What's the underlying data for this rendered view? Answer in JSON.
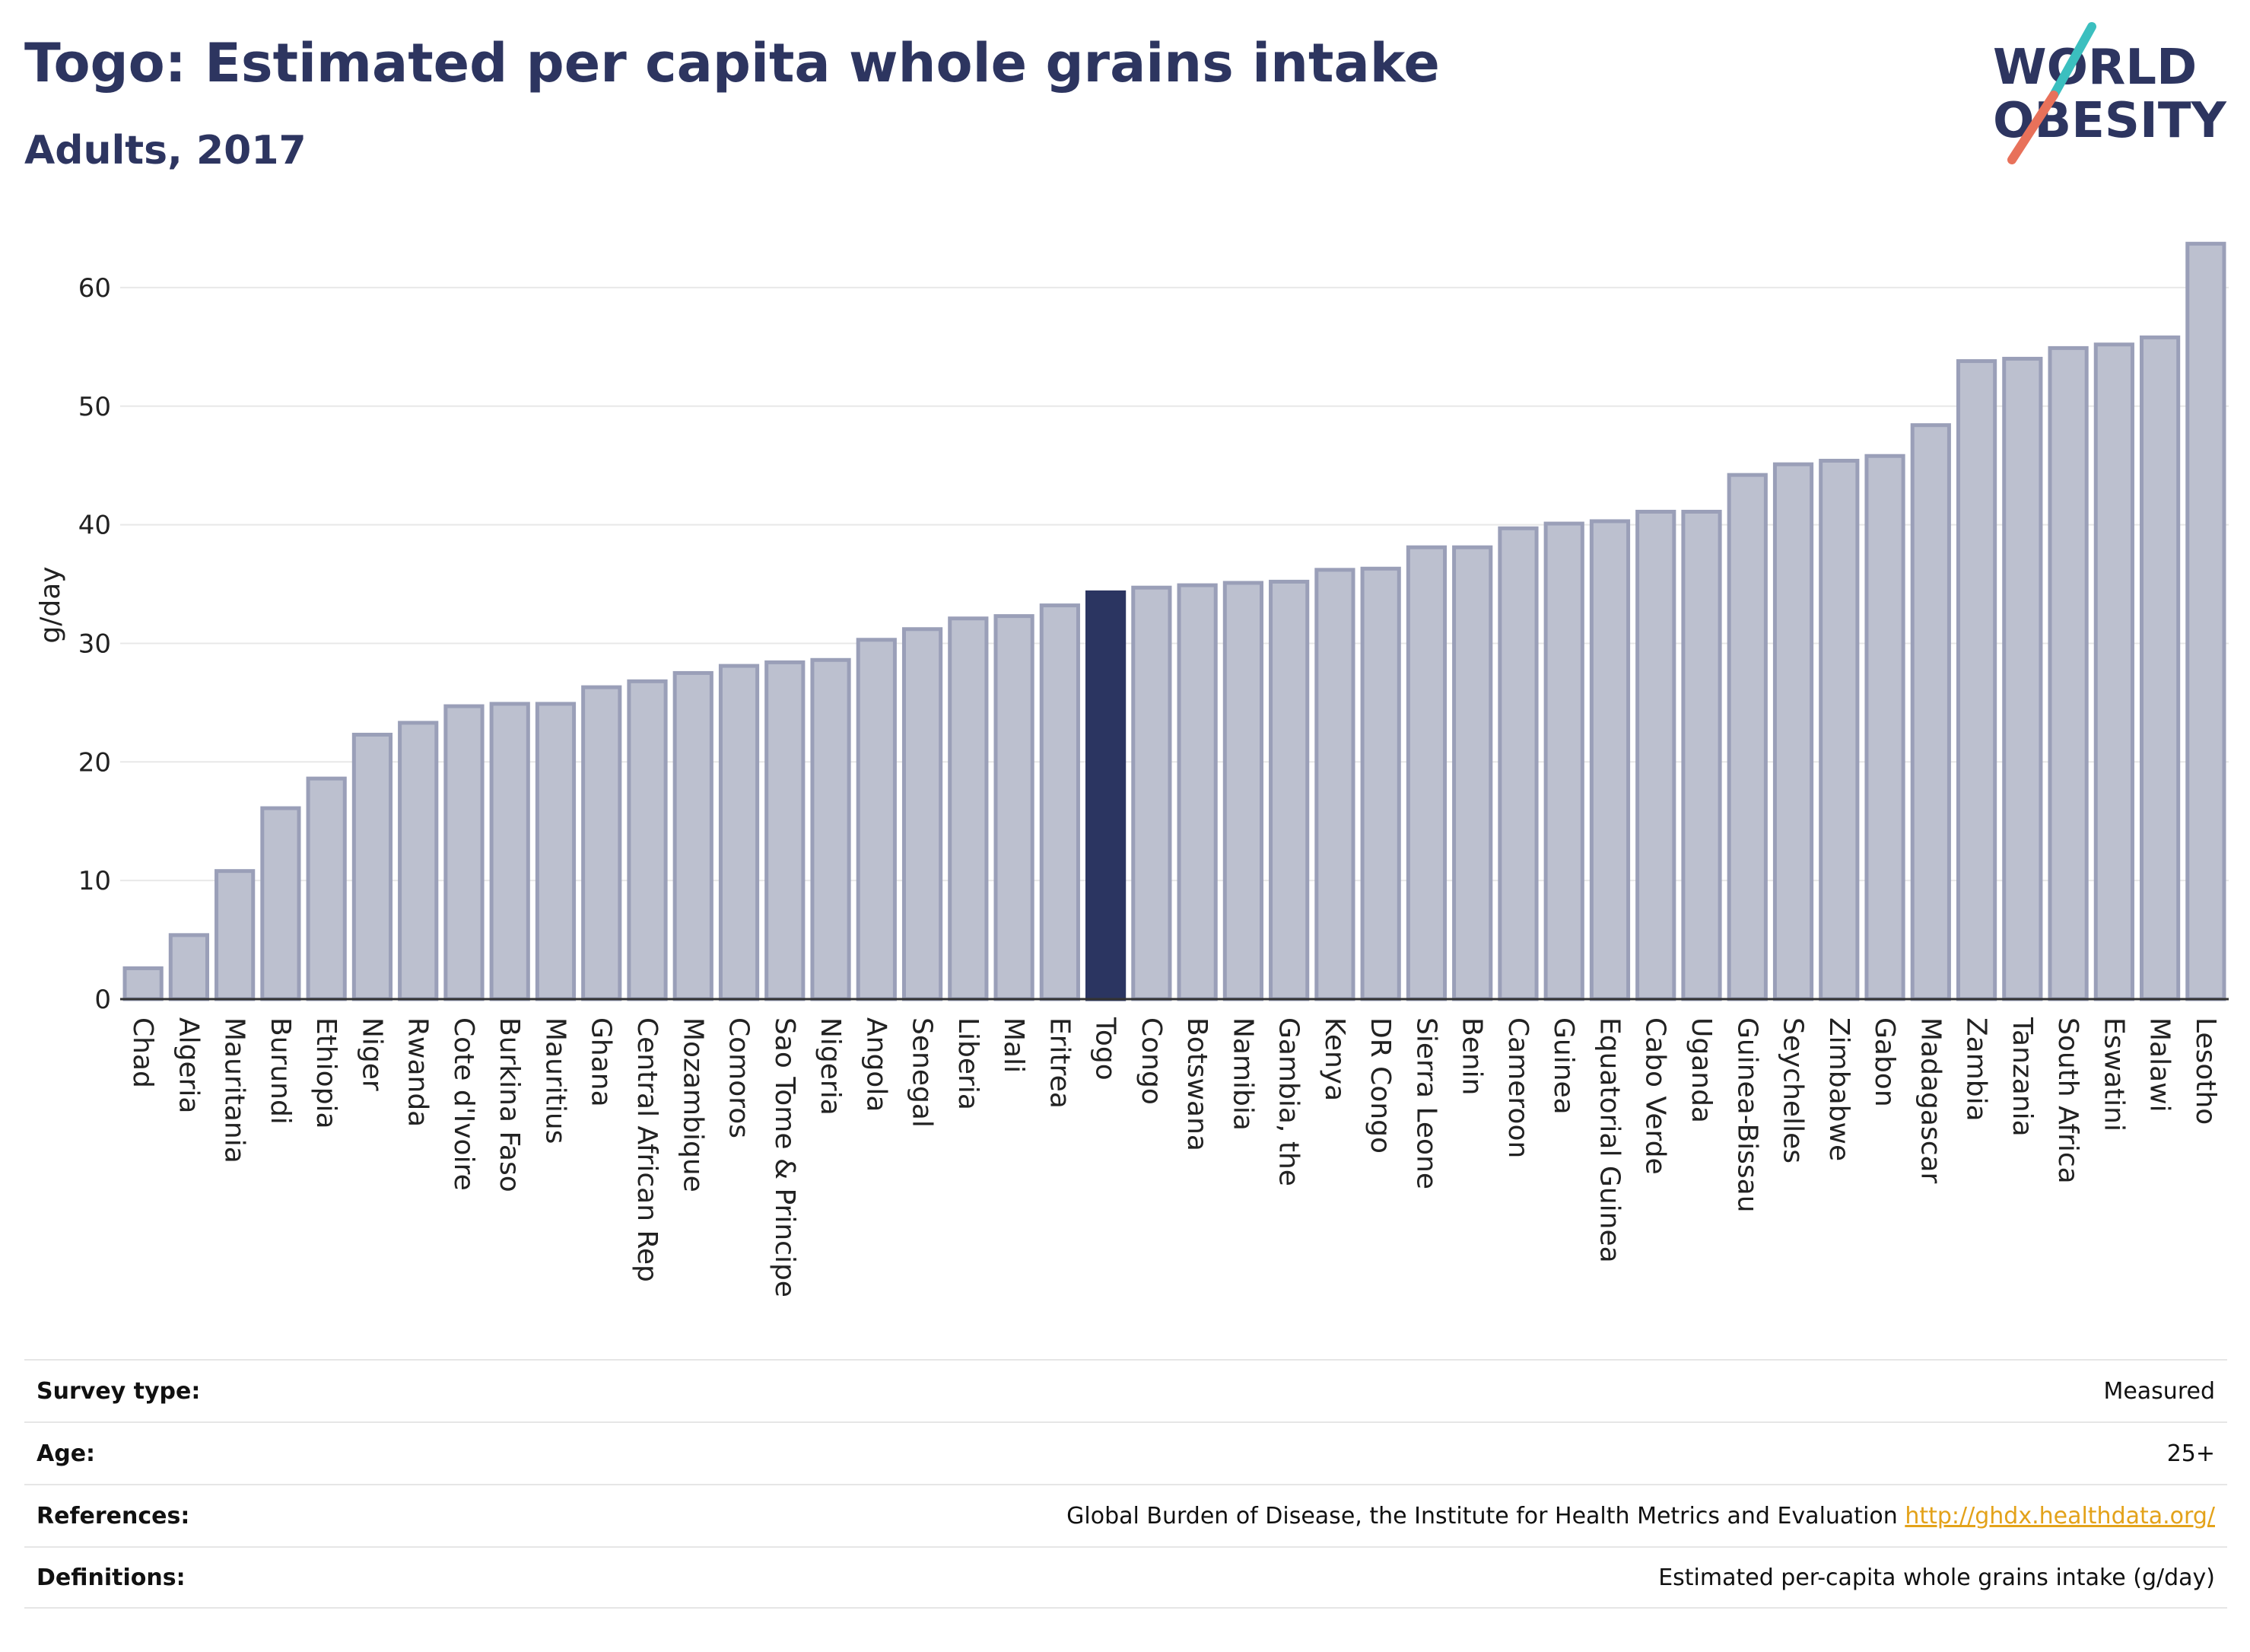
{
  "header": {
    "title": "Togo: Estimated per capita whole grains intake",
    "subtitle": "Adults, 2017"
  },
  "logo": {
    "line1": "WORLD",
    "line2": "OBESITY",
    "colors": {
      "text": "#2d3560",
      "slash_teal": "#3bbfbf",
      "slash_coral": "#e8715a"
    }
  },
  "colors": {
    "bar": "#bcc0cf",
    "bar_stroke": "#9a9fb8",
    "highlight": "#2b3561",
    "grid": "#e8e8e8",
    "axis": "#333333"
  },
  "chart_data": {
    "type": "bar",
    "title": "Togo: Estimated per capita whole grains intake",
    "subtitle": "Adults, 2017",
    "ylabel": "g/day",
    "ylim": [
      0,
      65
    ],
    "yticks": [
      0,
      10,
      20,
      30,
      40,
      50,
      60
    ],
    "grid": true,
    "highlight": "Togo",
    "categories": [
      "Chad",
      "Algeria",
      "Mauritania",
      "Burundi",
      "Ethiopia",
      "Niger",
      "Rwanda",
      "Cote d'Ivoire",
      "Burkina Faso",
      "Mauritius",
      "Ghana",
      "Central African Rep",
      "Mozambique",
      "Comoros",
      "Sao Tome & Principe",
      "Nigeria",
      "Angola",
      "Senegal",
      "Liberia",
      "Mali",
      "Eritrea",
      "Togo",
      "Congo",
      "Botswana",
      "Namibia",
      "Gambia, the",
      "Kenya",
      "DR Congo",
      "Sierra Leone",
      "Benin",
      "Cameroon",
      "Guinea",
      "Equatorial Guinea",
      "Cabo Verde",
      "Uganda",
      "Guinea-Bissau",
      "Seychelles",
      "Zimbabwe",
      "Gabon",
      "Madagascar",
      "Zambia",
      "Tanzania",
      "South Africa",
      "Eswatini",
      "Malawi",
      "Lesotho"
    ],
    "values": [
      2.6,
      5.4,
      10.8,
      16.1,
      18.6,
      22.3,
      23.3,
      24.7,
      24.9,
      24.9,
      26.3,
      26.8,
      27.5,
      28.1,
      28.4,
      28.6,
      30.3,
      31.2,
      32.1,
      32.3,
      33.2,
      34.3,
      34.7,
      34.9,
      35.1,
      35.2,
      36.2,
      36.3,
      38.1,
      38.1,
      39.7,
      40.1,
      40.3,
      41.1,
      41.1,
      44.2,
      45.1,
      45.4,
      45.8,
      48.4,
      53.8,
      54.0,
      54.9,
      55.2,
      55.8,
      63.7
    ]
  },
  "meta": {
    "rows": [
      {
        "key": "Survey type:",
        "value": "Measured"
      },
      {
        "key": "Age:",
        "value": "25+"
      },
      {
        "key": "References:",
        "value": "Global Burden of Disease, the Institute for Health Metrics and Evaluation ",
        "link": "http://ghdx.healthdata.org/"
      },
      {
        "key": "Definitions:",
        "value": "Estimated per-capita whole grains intake (g/day)"
      }
    ]
  }
}
